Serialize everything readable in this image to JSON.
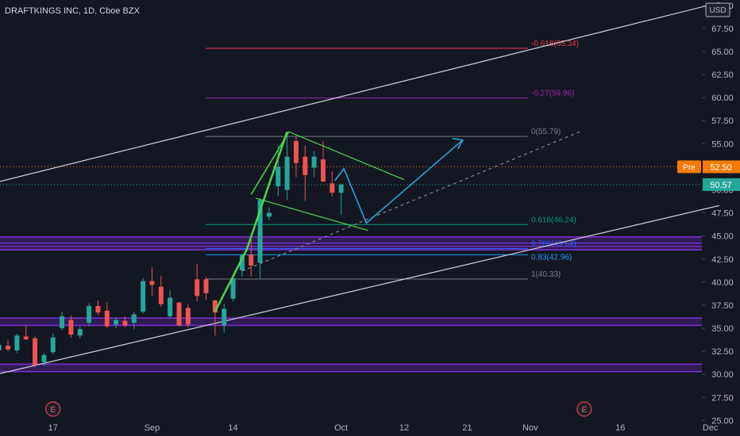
{
  "header": {
    "symbol_title": "DRAFTKINGS INC, 1D, Cboe BZX",
    "currency_button": "USD"
  },
  "colors": {
    "background": "#131722",
    "up": "#26a69a",
    "down": "#ef5350",
    "axis_text": "#b2b5be",
    "purple_zone": "#7e2fd6",
    "pennant": "#4cd54c",
    "projection": "#29a3d6",
    "pre_badge": "#f57c00",
    "last_badge": "#26a69a"
  },
  "chart_data": {
    "type": "candlestick",
    "title": "DRAFTKINGS INC, 1D, Cboe BZX",
    "y_axis": {
      "side": "right",
      "ylim": [
        24.0,
        70.5
      ],
      "ticks": [
        "25.00",
        "27.50",
        "30.00",
        "32.50",
        "35.00",
        "37.50",
        "40.00",
        "42.50",
        "45.00",
        "47.50",
        "50.00",
        "52.50",
        "55.00",
        "57.50",
        "60.00",
        "62.50",
        "65.00",
        "67.50",
        "70.00"
      ]
    },
    "x_axis": {
      "ticks": [
        {
          "label": "17",
          "index": 6
        },
        {
          "label": "Sep",
          "index": 17
        },
        {
          "label": "14",
          "index": 26
        },
        {
          "label": "Oct",
          "index": 38
        },
        {
          "label": "12",
          "index": 45
        },
        {
          "label": "21",
          "index": 52
        },
        {
          "label": "Nov",
          "index": 59
        },
        {
          "label": "16",
          "index": 69
        },
        {
          "label": "Dec",
          "index": 79
        }
      ],
      "index_range": [
        -2,
        80
      ]
    },
    "candles": [
      {
        "o": 32.6,
        "h": 33.4,
        "l": 32.0,
        "c": 33.2
      },
      {
        "o": 33.1,
        "h": 33.7,
        "l": 32.5,
        "c": 32.7
      },
      {
        "o": 32.6,
        "h": 34.4,
        "l": 32.3,
        "c": 34.2
      },
      {
        "o": 34.1,
        "h": 35.3,
        "l": 33.7,
        "c": 33.8
      },
      {
        "o": 33.9,
        "h": 34.1,
        "l": 30.8,
        "c": 31.0
      },
      {
        "o": 31.3,
        "h": 32.3,
        "l": 30.9,
        "c": 32.1
      },
      {
        "o": 32.4,
        "h": 34.4,
        "l": 32.2,
        "c": 34.0
      },
      {
        "o": 35.0,
        "h": 36.8,
        "l": 34.8,
        "c": 36.3
      },
      {
        "o": 35.9,
        "h": 36.4,
        "l": 34.0,
        "c": 34.3
      },
      {
        "o": 34.2,
        "h": 35.2,
        "l": 33.9,
        "c": 34.9
      },
      {
        "o": 35.6,
        "h": 37.7,
        "l": 35.2,
        "c": 37.4
      },
      {
        "o": 37.4,
        "h": 38.0,
        "l": 36.4,
        "c": 36.7
      },
      {
        "o": 36.9,
        "h": 37.8,
        "l": 35.0,
        "c": 35.2
      },
      {
        "o": 35.4,
        "h": 36.2,
        "l": 35.0,
        "c": 35.9
      },
      {
        "o": 35.8,
        "h": 36.3,
        "l": 35.1,
        "c": 35.3
      },
      {
        "o": 35.6,
        "h": 36.8,
        "l": 34.9,
        "c": 36.5
      },
      {
        "o": 36.8,
        "h": 40.4,
        "l": 36.6,
        "c": 40.1
      },
      {
        "o": 40.1,
        "h": 41.6,
        "l": 38.5,
        "c": 39.7
      },
      {
        "o": 39.5,
        "h": 40.7,
        "l": 37.3,
        "c": 37.6
      },
      {
        "o": 36.3,
        "h": 39.1,
        "l": 36.1,
        "c": 38.3
      },
      {
        "o": 37.8,
        "h": 37.8,
        "l": 35.2,
        "c": 35.3
      },
      {
        "o": 37.2,
        "h": 37.6,
        "l": 35.1,
        "c": 35.4
      },
      {
        "o": 40.3,
        "h": 42.0,
        "l": 37.9,
        "c": 38.5
      },
      {
        "o": 40.3,
        "h": 40.6,
        "l": 38.1,
        "c": 38.8
      },
      {
        "o": 38.0,
        "h": 38.1,
        "l": 34.2,
        "c": 36.7
      },
      {
        "o": 35.3,
        "h": 37.6,
        "l": 34.5,
        "c": 37.1
      },
      {
        "o": 38.2,
        "h": 40.7,
        "l": 37.9,
        "c": 40.4
      },
      {
        "o": 41.3,
        "h": 43.1,
        "l": 40.6,
        "c": 42.9
      },
      {
        "o": 43.0,
        "h": 44.6,
        "l": 40.6,
        "c": 41.8
      },
      {
        "o": 42.1,
        "h": 49.1,
        "l": 40.3,
        "c": 48.9
      },
      {
        "o": 47.1,
        "h": 48.1,
        "l": 46.7,
        "c": 47.5
      },
      {
        "o": 50.4,
        "h": 54.8,
        "l": 49.3,
        "c": 52.5
      },
      {
        "o": 50.0,
        "h": 56.0,
        "l": 48.9,
        "c": 53.6
      },
      {
        "o": 55.3,
        "h": 55.8,
        "l": 51.4,
        "c": 52.9
      },
      {
        "o": 53.6,
        "h": 54.8,
        "l": 48.8,
        "c": 51.6
      },
      {
        "o": 52.4,
        "h": 54.2,
        "l": 51.4,
        "c": 53.6
      },
      {
        "o": 53.3,
        "h": 55.3,
        "l": 50.9,
        "c": 50.9
      },
      {
        "o": 50.7,
        "h": 52.0,
        "l": 49.3,
        "c": 49.7
      },
      {
        "o": 49.7,
        "h": 50.6,
        "l": 47.3,
        "c": 50.6
      }
    ],
    "fib_levels": [
      {
        "label": "-0.618(65.34)",
        "value": 65.34,
        "color": "#f23645"
      },
      {
        "label": "-0.27(59.96)",
        "value": 59.96,
        "color": "#9c27b0"
      },
      {
        "label": "0(55.79)",
        "value": 55.79,
        "color": "#787b86"
      },
      {
        "label": "0.618(46.24)",
        "value": 46.24,
        "color": "#089981"
      },
      {
        "label": "0.786(43.64)",
        "value": 43.64,
        "color": "#2962ff"
      },
      {
        "label": "0.83(42.96)",
        "value": 42.96,
        "color": "#2196f3"
      },
      {
        "label": "1(40.33)",
        "value": 40.33,
        "color": "#787b86"
      }
    ],
    "zones": [
      {
        "from": 44.2,
        "to": 44.9
      },
      {
        "from": 43.5,
        "to": 43.9
      },
      {
        "from": 35.3,
        "to": 36.1
      },
      {
        "from": 30.3,
        "to": 31.1
      }
    ],
    "price_lines": [
      {
        "label": "Pre",
        "value": 52.5,
        "text": "52.50",
        "color": "#f57c00"
      },
      {
        "label": "",
        "value": 50.57,
        "text": "50.57",
        "color": "#26a69a"
      }
    ],
    "earnings_markers": [
      {
        "label": "E",
        "index": 6
      },
      {
        "label": "E",
        "index": 65
      }
    ],
    "channel": {
      "upper": [
        {
          "i": -2,
          "v": 50.4
        },
        {
          "i": 80,
          "v": 70.3
        }
      ],
      "lower": [
        {
          "i": -2,
          "v": 29.6
        },
        {
          "i": 80,
          "v": 48.3
        }
      ]
    }
  }
}
